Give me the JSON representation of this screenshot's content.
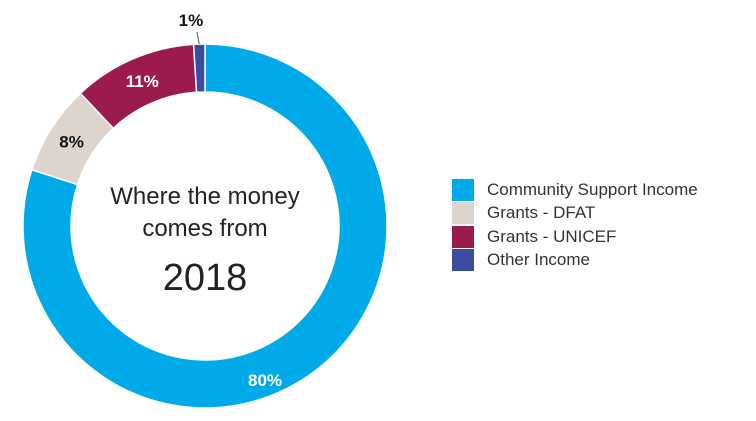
{
  "chart_data": {
    "type": "pie",
    "variant": "donut",
    "title": "",
    "center_text": {
      "line1": "Where the money",
      "line2": "comes from",
      "year": "2018"
    },
    "slices": [
      {
        "label": "Community Support Income",
        "value": 80,
        "display": "80%",
        "color": "#00a9e8"
      },
      {
        "label": "Grants - DFAT",
        "value": 8,
        "display": "8%",
        "color": "#ddd5cd"
      },
      {
        "label": "Grants - UNICEF",
        "value": 11,
        "display": "11%",
        "color": "#9b1b4d"
      },
      {
        "label": "Other Income",
        "value": 1,
        "display": "1%",
        "color": "#3b4ba0"
      }
    ],
    "legend_position": "right"
  }
}
